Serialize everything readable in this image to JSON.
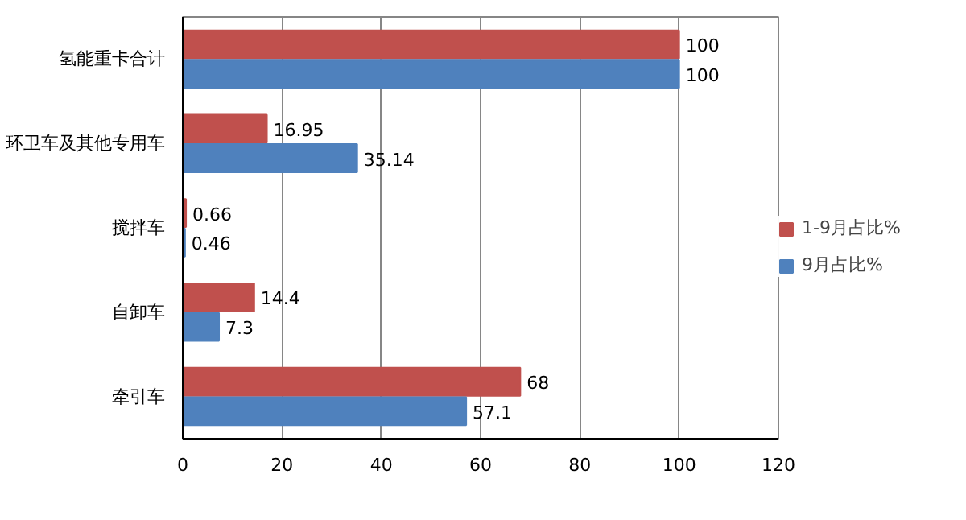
{
  "chart_data": {
    "type": "bar",
    "orientation": "horizontal",
    "categories": [
      "氢能重卡合计",
      "环卫车及其他专用车",
      "搅拌车",
      "自卸车",
      "牵引车"
    ],
    "series": [
      {
        "name": "1-9月占比%",
        "color": "#c0504d",
        "values": [
          100,
          16.95,
          0.66,
          14.4,
          68
        ]
      },
      {
        "name": "9月占比%",
        "color": "#4f81bd",
        "values": [
          100,
          35.14,
          0.46,
          7.3,
          57.1
        ]
      }
    ],
    "xlim": [
      0,
      120
    ],
    "xticks": [
      0,
      20,
      40,
      60,
      80,
      100,
      120
    ],
    "grid": "x",
    "legend": "right",
    "data_labels": true
  }
}
